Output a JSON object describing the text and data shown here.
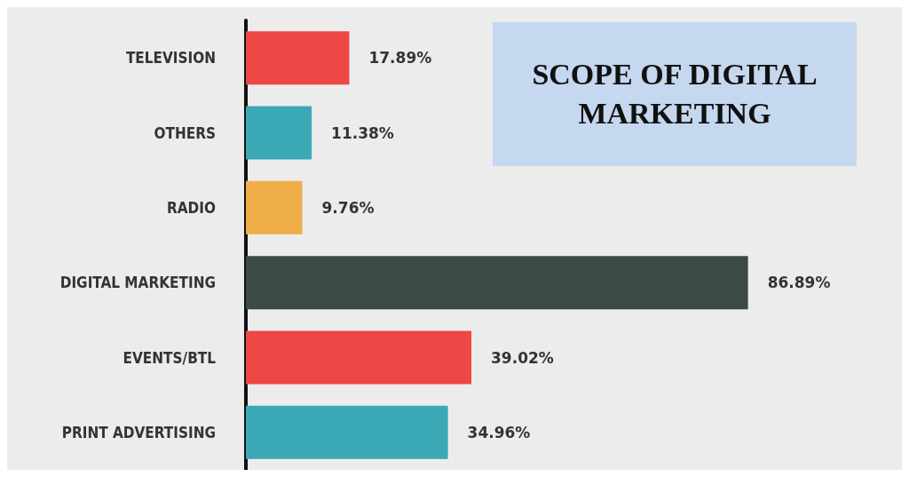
{
  "chart_data": {
    "type": "bar",
    "orientation": "horizontal",
    "title": "SCOPE OF DIGITAL MARKETING",
    "categories": [
      "TELEVISION",
      "OTHERS",
      "RADIO",
      "DIGITAL MARKETING",
      "EVENTS/BTL",
      "PRINT ADVERTISING"
    ],
    "values": [
      17.89,
      11.38,
      9.76,
      86.89,
      39.02,
      34.96
    ],
    "colors": [
      "#ef4646",
      "#3aa9b5",
      "#efae48",
      "#3d4947",
      "#ef4646",
      "#3aa9b5"
    ],
    "value_labels": [
      "17.89%",
      "11.38%",
      "9.76%",
      "86.89%",
      "39.02%",
      "34.96%"
    ],
    "grid": false
  }
}
